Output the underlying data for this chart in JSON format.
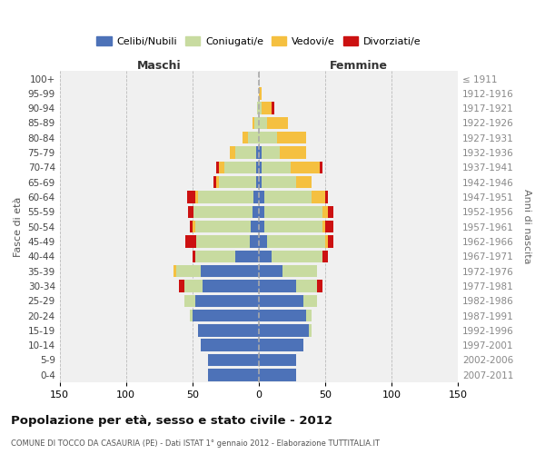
{
  "age_groups": [
    "0-4",
    "5-9",
    "10-14",
    "15-19",
    "20-24",
    "25-29",
    "30-34",
    "35-39",
    "40-44",
    "45-49",
    "50-54",
    "55-59",
    "60-64",
    "65-69",
    "70-74",
    "75-79",
    "80-84",
    "85-89",
    "90-94",
    "95-99",
    "100+"
  ],
  "birth_years": [
    "2007-2011",
    "2002-2006",
    "1997-2001",
    "1992-1996",
    "1987-1991",
    "1982-1986",
    "1977-1981",
    "1972-1976",
    "1967-1971",
    "1962-1966",
    "1957-1961",
    "1952-1956",
    "1947-1951",
    "1942-1946",
    "1937-1941",
    "1932-1936",
    "1927-1931",
    "1922-1926",
    "1917-1921",
    "1912-1916",
    "≤ 1911"
  ],
  "males": {
    "celibi": [
      38,
      38,
      44,
      46,
      50,
      48,
      42,
      44,
      18,
      7,
      6,
      5,
      4,
      2,
      2,
      2,
      0,
      0,
      0,
      0,
      0
    ],
    "coniugati": [
      0,
      0,
      0,
      0,
      2,
      8,
      14,
      18,
      30,
      40,
      42,
      44,
      42,
      28,
      24,
      16,
      8,
      3,
      1,
      0,
      0
    ],
    "vedovi": [
      0,
      0,
      0,
      0,
      0,
      0,
      0,
      2,
      0,
      0,
      2,
      0,
      2,
      2,
      4,
      4,
      4,
      2,
      0,
      0,
      0
    ],
    "divorziati": [
      0,
      0,
      0,
      0,
      0,
      0,
      4,
      0,
      2,
      8,
      2,
      4,
      6,
      2,
      2,
      0,
      0,
      0,
      0,
      0,
      0
    ]
  },
  "females": {
    "nubili": [
      28,
      28,
      34,
      38,
      36,
      34,
      28,
      18,
      10,
      6,
      4,
      4,
      4,
      2,
      2,
      2,
      0,
      0,
      0,
      0,
      0
    ],
    "coniugate": [
      0,
      0,
      0,
      2,
      4,
      10,
      16,
      26,
      38,
      44,
      44,
      44,
      36,
      26,
      22,
      14,
      14,
      6,
      2,
      0,
      0
    ],
    "vedove": [
      0,
      0,
      0,
      0,
      0,
      0,
      0,
      0,
      0,
      2,
      2,
      4,
      10,
      12,
      22,
      20,
      22,
      16,
      8,
      2,
      0
    ],
    "divorziate": [
      0,
      0,
      0,
      0,
      0,
      0,
      4,
      0,
      4,
      4,
      6,
      4,
      2,
      0,
      2,
      0,
      0,
      0,
      2,
      0,
      0
    ]
  },
  "colors": {
    "celibi_nubili": "#4d72b8",
    "coniugati": "#c8dba0",
    "vedovi": "#f5c040",
    "divorziati": "#cc1111"
  },
  "xlim": 150,
  "title": "Popolazione per età, sesso e stato civile - 2012",
  "subtitle": "COMUNE DI TOCCO DA CASAURIA (PE) - Dati ISTAT 1° gennaio 2012 - Elaborazione TUTTITALIA.IT",
  "ylabel_left": "Fasce di età",
  "ylabel_right": "Anni di nascita",
  "legend_labels": [
    "Celibi/Nubili",
    "Coniugati/e",
    "Vedovi/e",
    "Divorziati/e"
  ],
  "maschi_label": "Maschi",
  "femmine_label": "Femmine",
  "bg_color": "#ffffff",
  "plot_bg_color": "#f0f0f0"
}
